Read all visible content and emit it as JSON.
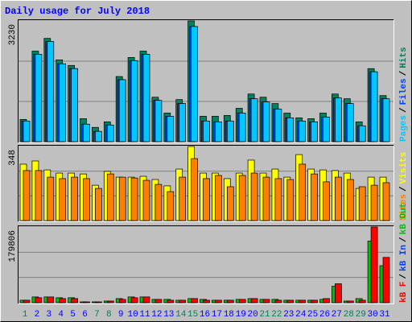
{
  "chart_data": [
    {
      "type": "bar",
      "title": "Daily usage for July 2018",
      "legend_separator": "/",
      "ylim": [
        0,
        3230
      ],
      "yticks": [
        3230
      ],
      "series": [
        {
          "name": "Pages",
          "color": "#00c8ff",
          "values": [
            553,
            2338,
            2678,
            2083,
            1955,
            468,
            276,
            446,
            1658,
            2168,
            2338,
            1105,
            680,
            1020,
            3081,
            553,
            531,
            553,
            765,
            1148,
            1063,
            871,
            638,
            553,
            531,
            659,
            1169,
            1020,
            425,
            1870,
            1148
          ]
        },
        {
          "name": "Files",
          "color": "#0040ff",
          "values": [
            553,
            2338,
            2678,
            2083,
            1955,
            468,
            276,
            446,
            1658,
            2168,
            2338,
            1105,
            680,
            1020,
            3081,
            553,
            531,
            553,
            765,
            1148,
            1063,
            871,
            638,
            553,
            531,
            659,
            1169,
            1020,
            425,
            1870,
            1148
          ]
        },
        {
          "name": "Hits",
          "color": "#00805c",
          "values": [
            595,
            2423,
            2763,
            2189,
            2040,
            616,
            383,
            531,
            1743,
            2253,
            2423,
            1190,
            765,
            1126,
            3230,
            680,
            680,
            701,
            893,
            1275,
            1190,
            1020,
            765,
            638,
            616,
            765,
            1275,
            1148,
            531,
            1955,
            1233
          ]
        }
      ]
    },
    {
      "type": "bar",
      "legend_separator": "/",
      "ylim": [
        0,
        348
      ],
      "yticks": [
        348
      ],
      "series": [
        {
          "name": "Sites",
          "color": "#ff8000",
          "values": [
            235,
            235,
            204,
            197,
            204,
            197,
            151,
            219,
            204,
            200,
            189,
            170,
            136,
            204,
            291,
            197,
            212,
            159,
            212,
            223,
            204,
            197,
            193,
            265,
            219,
            182,
            204,
            193,
            159,
            166,
            178
          ]
        },
        {
          "name": "Visits",
          "color": "#ffff00",
          "values": [
            265,
            280,
            238,
            223,
            223,
            219,
            166,
            231,
            204,
            204,
            208,
            193,
            163,
            242,
            348,
            223,
            223,
            197,
            223,
            284,
            223,
            242,
            204,
            310,
            242,
            238,
            235,
            223,
            151,
            204,
            204
          ]
        }
      ]
    },
    {
      "type": "bar",
      "legend_separator": "/",
      "ylim": [
        0,
        179806
      ],
      "yticks": [
        179806
      ],
      "categories": [
        "1",
        "2",
        "3",
        "4",
        "5",
        "6",
        "7",
        "8",
        "9",
        "10",
        "11",
        "12",
        "13",
        "14",
        "15",
        "16",
        "17",
        "18",
        "19",
        "20",
        "21",
        "22",
        "23",
        "24",
        "25",
        "26",
        "27",
        "28",
        "29",
        "30",
        "31"
      ],
      "category_colors": [
        "#00805c",
        "#0000ff",
        "#0000ff",
        "#0000ff",
        "#0000ff",
        "#0000ff",
        "#00805c",
        "#00805c",
        "#0000ff",
        "#0000ff",
        "#0000ff",
        "#0000ff",
        "#0000ff",
        "#00805c",
        "#00805c",
        "#0000ff",
        "#0000ff",
        "#0000ff",
        "#0000ff",
        "#0000ff",
        "#00805c",
        "#00805c",
        "#0000ff",
        "#0000ff",
        "#0000ff",
        "#0000ff",
        "#0000ff",
        "#00805c",
        "#00805c",
        "#0000ff",
        "#0000ff"
      ],
      "series": [
        {
          "name": "kB F",
          "color": "#ff0000",
          "values": [
            5863,
            11727,
            13680,
            9772,
            9772,
            1954,
            1954,
            3909,
            7818,
            11727,
            13680,
            7818,
            5863,
            5863,
            9772,
            5863,
            5863,
            5863,
            7818,
            9772,
            7818,
            5863,
            5863,
            5863,
            5863,
            9772,
            44950,
            3909,
            5863,
            179806,
            107500
          ]
        },
        {
          "name": "kB In",
          "color": "#0040ff",
          "values": [
            0,
            0,
            0,
            0,
            0,
            0,
            0,
            0,
            0,
            0,
            0,
            0,
            0,
            0,
            0,
            0,
            0,
            0,
            0,
            0,
            0,
            0,
            0,
            0,
            0,
            0,
            0,
            0,
            0,
            0,
            0
          ]
        },
        {
          "name": "kB Out",
          "color": "#00c000",
          "values": [
            5863,
            13680,
            13680,
            11727,
            11727,
            1954,
            1954,
            3909,
            9772,
            13680,
            13680,
            7818,
            7818,
            5863,
            9772,
            7818,
            5863,
            5863,
            7818,
            9772,
            7818,
            7818,
            5863,
            5863,
            5863,
            7818,
            39087,
            3909,
            9772,
            146560,
            87940
          ]
        }
      ]
    }
  ]
}
